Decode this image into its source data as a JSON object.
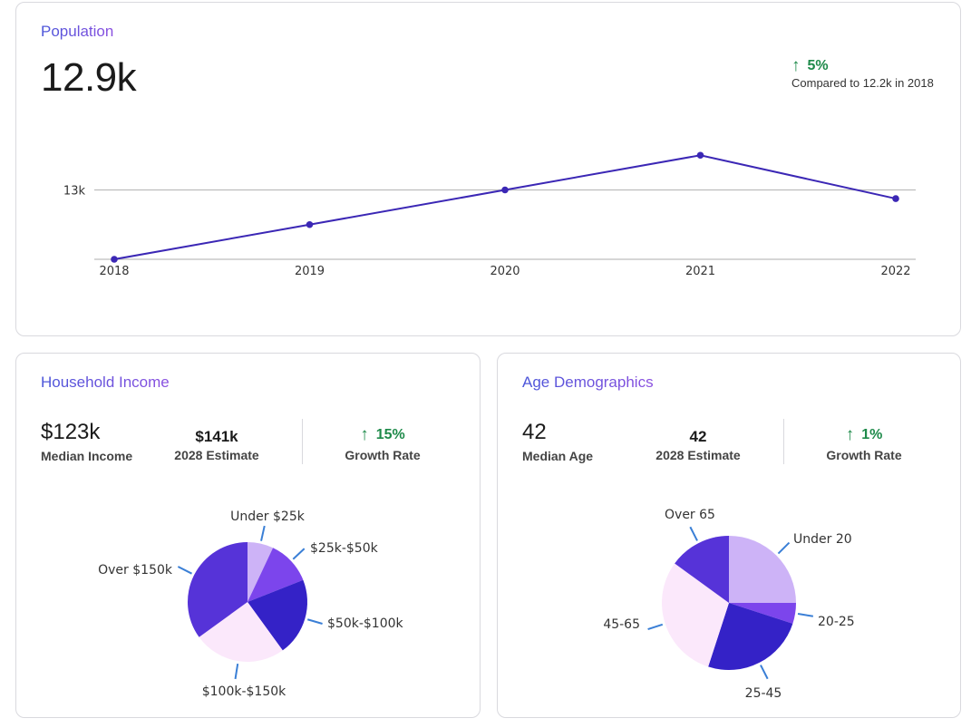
{
  "population": {
    "title": "Population",
    "value": "12.9k",
    "growth": "5%",
    "compare": "Compared to 12.2k in 2018"
  },
  "income": {
    "title": "Household Income",
    "median_value": "$123k",
    "median_label": "Median Income",
    "estimate_value": "$141k",
    "estimate_label": "2028 Estimate",
    "growth_value": "15%",
    "growth_label": "Growth Rate"
  },
  "age": {
    "title": "Age Demographics",
    "median_value": "42",
    "median_label": "Median Age",
    "estimate_value": "42",
    "estimate_label": "2028 Estimate",
    "growth_value": "1%",
    "growth_label": "Growth Rate"
  },
  "colors": {
    "line": "#3b27b5",
    "growth": "#1e8a4a",
    "leader": "#3a7fd6",
    "axis": "#bdbdbd"
  },
  "chart_data": [
    {
      "type": "line",
      "x": [
        "2018",
        "2019",
        "2020",
        "2021",
        "2022"
      ],
      "values": [
        12.2,
        12.6,
        13.0,
        13.4,
        12.9
      ],
      "ytick": "13k",
      "ytick_value": 13.0,
      "ylim": [
        12.2,
        13.8
      ],
      "grid": true
    },
    {
      "type": "pie",
      "labels": [
        "Under $25k",
        "$25k-$50k",
        "$50k-$100k",
        "$100k-$150k",
        "Over $150k"
      ],
      "values": [
        7,
        12,
        21,
        25,
        35
      ],
      "colors": [
        "#cdb3f7",
        "#7c45ec",
        "#3422c7",
        "#fbe8fb",
        "#5633d8"
      ]
    },
    {
      "type": "pie",
      "labels": [
        "Under 20",
        "20-25",
        "25-45",
        "45-65",
        "Over 65"
      ],
      "values": [
        25,
        5,
        25,
        30,
        15
      ],
      "colors": [
        "#cdb3f7",
        "#7c45ec",
        "#3422c7",
        "#fbe8fb",
        "#5633d8"
      ]
    }
  ]
}
